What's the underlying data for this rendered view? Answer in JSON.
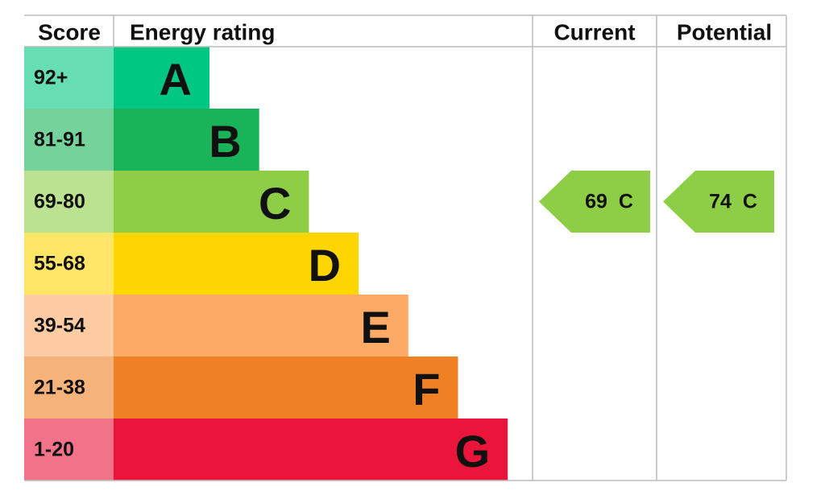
{
  "header": {
    "score": "Score",
    "rating": "Energy rating",
    "current": "Current",
    "potential": "Potential"
  },
  "bands": [
    {
      "score": "92+",
      "letter": "A",
      "color": "#00c781"
    },
    {
      "score": "81-91",
      "letter": "B",
      "color": "#19b459"
    },
    {
      "score": "69-80",
      "letter": "C",
      "color": "#8dce46"
    },
    {
      "score": "55-68",
      "letter": "D",
      "color": "#ffd500"
    },
    {
      "score": "39-54",
      "letter": "E",
      "color": "#fcaa65"
    },
    {
      "score": "21-38",
      "letter": "F",
      "color": "#ef8023"
    },
    {
      "score": "1-20",
      "letter": "G",
      "color": "#e9153b"
    }
  ],
  "current": {
    "value": 69,
    "letter": "C"
  },
  "potential": {
    "value": 74,
    "letter": "C"
  }
}
